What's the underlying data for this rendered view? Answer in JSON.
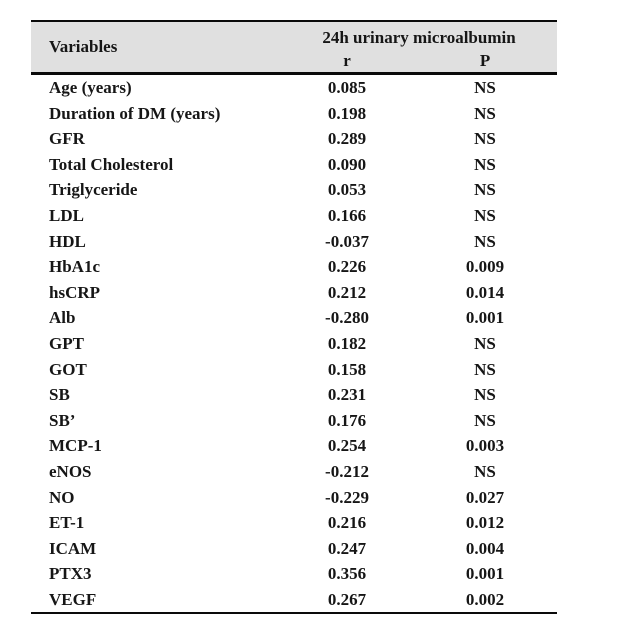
{
  "table": {
    "header": {
      "variables_label": "Variables",
      "group_label": "24h urinary microalbumin",
      "col_r": "r",
      "col_p": "P"
    },
    "rows": [
      {
        "variable": "Age (years)",
        "r": "0.085",
        "p": "NS"
      },
      {
        "variable": "Duration of DM (years)",
        "r": "0.198",
        "p": "NS"
      },
      {
        "variable": "GFR",
        "r": "0.289",
        "p": "NS"
      },
      {
        "variable": "Total Cholesterol",
        "r": "0.090",
        "p": "NS"
      },
      {
        "variable": "Triglyceride",
        "r": "0.053",
        "p": "NS"
      },
      {
        "variable": "LDL",
        "r": "0.166",
        "p": "NS"
      },
      {
        "variable": "HDL",
        "r": "-0.037",
        "p": "NS"
      },
      {
        "variable": "HbA1c",
        "r": "0.226",
        "p": "0.009"
      },
      {
        "variable": "hsCRP",
        "r": "0.212",
        "p": "0.014"
      },
      {
        "variable": "Alb",
        "r": "-0.280",
        "p": "0.001"
      },
      {
        "variable": "GPT",
        "r": "0.182",
        "p": "NS"
      },
      {
        "variable": "GOT",
        "r": "0.158",
        "p": "NS"
      },
      {
        "variable": "SB",
        "r": "0.231",
        "p": "NS"
      },
      {
        "variable": "SB’",
        "r": "0.176",
        "p": "NS"
      },
      {
        "variable": "MCP-1",
        "r": "0.254",
        "p": "0.003"
      },
      {
        "variable": "eNOS",
        "r": "-0.212",
        "p": "NS"
      },
      {
        "variable": "NO",
        "r": "-0.229",
        "p": "0.027"
      },
      {
        "variable": "ET-1",
        "r": "0.216",
        "p": "0.012"
      },
      {
        "variable": "ICAM",
        "r": "0.247",
        "p": "0.004"
      },
      {
        "variable": "PTX3",
        "r": "0.356",
        "p": "0.001"
      },
      {
        "variable": "VEGF",
        "r": "0.267",
        "p": "0.002"
      }
    ],
    "colors": {
      "header_bg": "#e0e0e0",
      "border": "#0a0a0a",
      "text": "#161616"
    }
  }
}
